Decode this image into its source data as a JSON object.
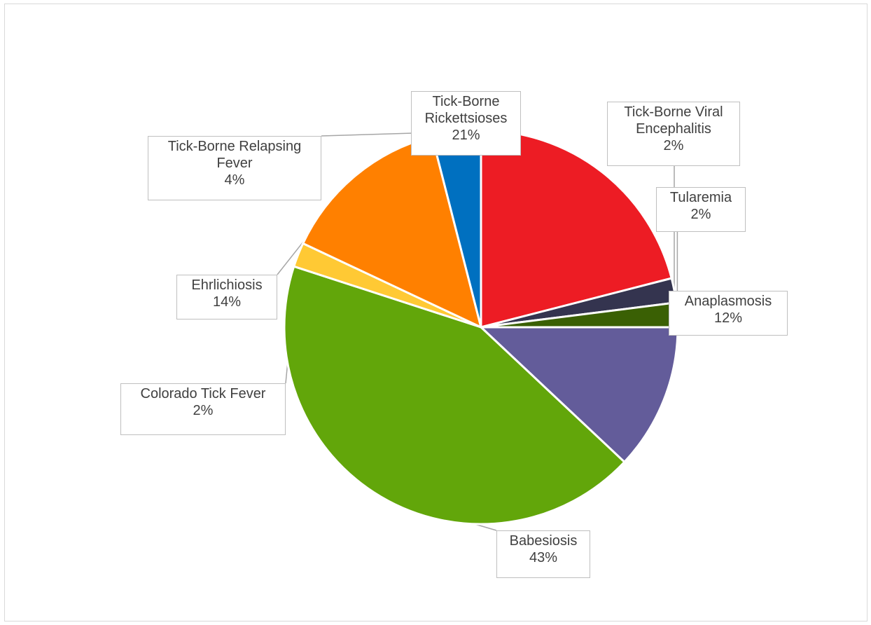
{
  "chart_data": {
    "type": "pie",
    "title": "",
    "legend": "none",
    "start_angle_deg": 0,
    "slices": [
      {
        "label": "Anaplasmosis",
        "value": 12,
        "pct_label": "12%",
        "color": "#635C9A"
      },
      {
        "label": "Babesiosis",
        "value": 43,
        "pct_label": "43%",
        "color": "#62A60A"
      },
      {
        "label": "Colorado Tick Fever",
        "value": 2,
        "pct_label": "2%",
        "color": "#FFC934"
      },
      {
        "label": "Ehrlichiosis",
        "value": 14,
        "pct_label": "14%",
        "color": "#FF8000"
      },
      {
        "label": "Tick-Borne Relapsing Fever",
        "value": 4,
        "pct_label": "4%",
        "color": "#0070C0"
      },
      {
        "label": "Tick-Borne Rickettsioses",
        "value": 21,
        "pct_label": "21%",
        "color": "#ED1C24"
      },
      {
        "label": "Tick-Borne Viral Encephalitis",
        "value": 2,
        "pct_label": "2%",
        "color": "#34344F"
      },
      {
        "label": "Tularemia",
        "value": 2,
        "pct_label": "2%",
        "color": "#3A6004"
      }
    ]
  }
}
